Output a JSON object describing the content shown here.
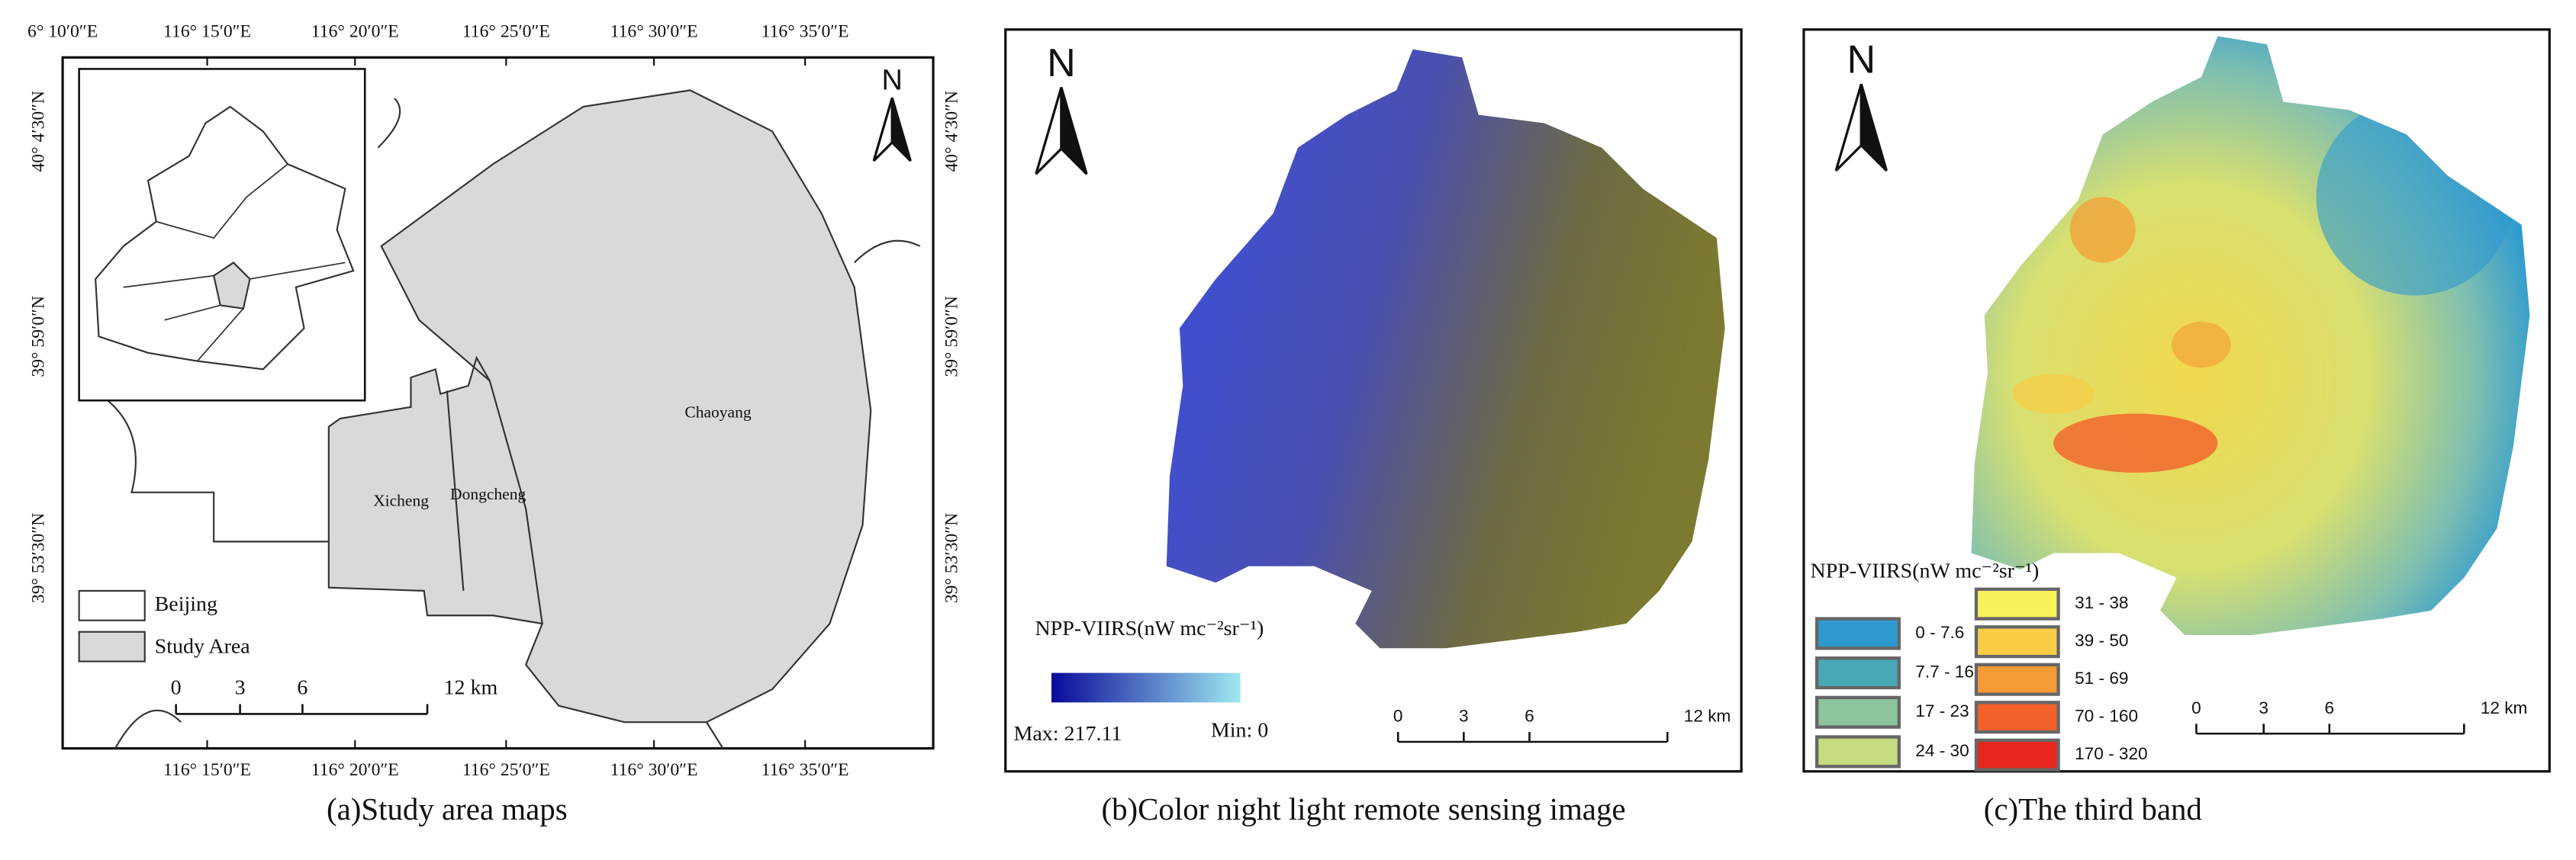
{
  "panels": [
    {
      "caption": "(a)Study area maps",
      "top_labels": [
        "6° 10′0″E",
        "116° 15′0″E",
        "116° 20′0″E",
        "116° 25′0″E",
        "116° 30′0″E",
        "116° 35′0″E"
      ],
      "bottom_labels": [
        "116° 15′0″E",
        "116° 20′0″E",
        "116° 25′0″E",
        "116° 30′0″E",
        "116° 35′0″E"
      ],
      "left_labels": [
        "40° 4′30″N",
        "39° 59′0″N",
        "39° 53′30″N"
      ],
      "right_labels": [
        "40° 4′30″N",
        "39° 59′0″N",
        "39° 53′30″N"
      ],
      "north": "N",
      "districts": [
        "Chaoyang",
        "Xicheng",
        "Dongcheng"
      ],
      "legend": [
        "Beijing",
        "Study Area"
      ],
      "scale": [
        "0",
        "3",
        "6",
        "12 km"
      ]
    },
    {
      "caption": "(b)Color night light remote sensing image",
      "north": "N",
      "legend_title": "NPP-VIIRS(nW mc⁻²sr⁻¹)",
      "max": "Max: 217.11",
      "min": "Min: 0",
      "scale": [
        "0",
        "3",
        "6",
        "12 km"
      ]
    },
    {
      "caption": "(c)The third band",
      "north": "N",
      "legend_title": "NPP-VIIRS(nW mc⁻²sr⁻¹)",
      "classes": [
        {
          "label": "0 - 7.6",
          "color": "#2e9ad0"
        },
        {
          "label": "7.7 - 16",
          "color": "#49a8b5"
        },
        {
          "label": "17 - 23",
          "color": "#8cc49e"
        },
        {
          "label": "24 - 30",
          "color": "#c6dc7f"
        },
        {
          "label": "31 - 38",
          "color": "#f5f25a"
        },
        {
          "label": "39 - 50",
          "color": "#f8cc45"
        },
        {
          "label": "51 - 69",
          "color": "#f59a35"
        },
        {
          "label": "70 - 160",
          "color": "#f2602a"
        },
        {
          "label": "170 - 320",
          "color": "#e8261e"
        }
      ],
      "scale": [
        "0",
        "3",
        "6",
        "12 km"
      ]
    }
  ]
}
